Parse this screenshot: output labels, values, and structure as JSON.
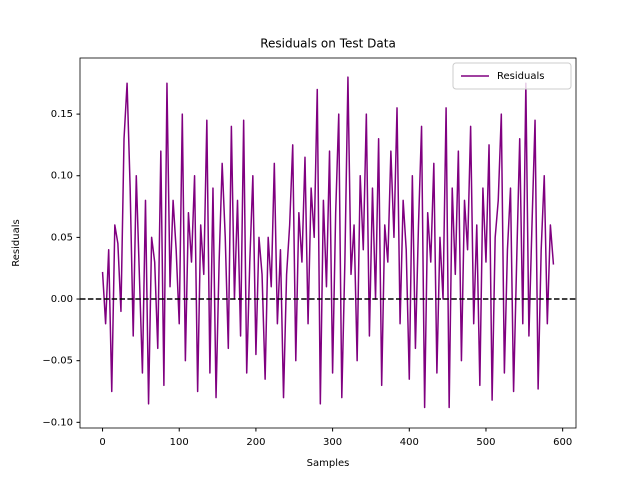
{
  "chart_data": {
    "type": "line",
    "title": "Residuals on Test Data",
    "x_label": "Samples",
    "y_label": "Residuals",
    "x": [
      0,
      4,
      8,
      12,
      16,
      20,
      24,
      28,
      32,
      36,
      40,
      44,
      48,
      52,
      56,
      60,
      64,
      68,
      72,
      76,
      80,
      84,
      88,
      92,
      96,
      100,
      104,
      108,
      112,
      116,
      120,
      124,
      128,
      132,
      136,
      140,
      144,
      148,
      152,
      156,
      160,
      164,
      168,
      172,
      176,
      180,
      184,
      188,
      192,
      196,
      200,
      204,
      208,
      212,
      216,
      220,
      224,
      228,
      232,
      236,
      240,
      244,
      248,
      252,
      256,
      260,
      264,
      268,
      272,
      276,
      280,
      284,
      288,
      292,
      296,
      300,
      304,
      308,
      312,
      316,
      320,
      324,
      328,
      332,
      336,
      340,
      344,
      348,
      352,
      356,
      360,
      364,
      368,
      372,
      376,
      380,
      384,
      388,
      392,
      396,
      400,
      404,
      408,
      412,
      416,
      420,
      424,
      428,
      432,
      436,
      440,
      444,
      448,
      452,
      456,
      460,
      464,
      468,
      472,
      476,
      480,
      484,
      488,
      492,
      496,
      500,
      504,
      508,
      512,
      516,
      520,
      524,
      528,
      532,
      536,
      540,
      544,
      548,
      552,
      556,
      560,
      564,
      568,
      572,
      576,
      580,
      584,
      588
    ],
    "series": [
      {
        "name": "Residuals",
        "color": "#800080",
        "values": [
          0.022,
          -0.02,
          0.04,
          -0.075,
          0.06,
          0.045,
          -0.01,
          0.13,
          0.175,
          0.09,
          -0.03,
          0.1,
          0.02,
          -0.06,
          0.08,
          -0.085,
          0.05,
          0.03,
          -0.04,
          0.12,
          -0.07,
          0.175,
          0.01,
          0.08,
          0.04,
          -0.02,
          0.15,
          -0.05,
          0.07,
          0.03,
          0.1,
          -0.075,
          0.06,
          0.02,
          0.145,
          -0.06,
          0.09,
          -0.08,
          0.03,
          0.11,
          0.05,
          -0.04,
          0.14,
          0.0,
          0.08,
          -0.03,
          0.145,
          -0.06,
          0.03,
          0.1,
          -0.045,
          0.05,
          0.02,
          -0.065,
          0.05,
          0.01,
          0.11,
          -0.02,
          0.04,
          -0.08,
          0.02,
          0.06,
          0.125,
          -0.05,
          0.07,
          0.03,
          0.115,
          -0.02,
          0.09,
          0.05,
          0.17,
          -0.085,
          0.08,
          0.01,
          0.12,
          -0.06,
          0.07,
          0.15,
          -0.08,
          0.03,
          0.18,
          0.02,
          0.06,
          -0.05,
          0.1,
          0.04,
          0.15,
          -0.03,
          0.09,
          0.0,
          0.13,
          -0.07,
          0.06,
          0.03,
          0.12,
          0.05,
          0.155,
          -0.02,
          0.08,
          0.04,
          -0.065,
          0.1,
          -0.04,
          0.06,
          0.14,
          -0.088,
          0.07,
          0.03,
          0.11,
          -0.06,
          0.05,
          0.0,
          0.155,
          -0.088,
          0.09,
          0.02,
          0.12,
          -0.05,
          0.08,
          0.04,
          0.14,
          -0.02,
          0.06,
          -0.07,
          0.09,
          0.03,
          0.125,
          -0.082,
          0.05,
          0.08,
          0.15,
          -0.06,
          0.04,
          0.09,
          -0.075,
          0.03,
          0.13,
          -0.02,
          0.175,
          -0.03,
          0.06,
          0.145,
          -0.073,
          0.04,
          0.1,
          -0.02,
          0.06,
          0.028
        ]
      }
    ],
    "reference_line": {
      "y": 0,
      "color": "#000000",
      "style": "dashed"
    },
    "xlim": [
      -29.4,
      617.4
    ],
    "xticks": [
      0,
      100,
      200,
      300,
      400,
      500,
      600
    ],
    "ylim": [
      -0.1046,
      0.1955
    ],
    "yticks": [
      {
        "value": -0.1,
        "label": "−0.10"
      },
      {
        "value": -0.05,
        "label": "−0.05"
      },
      {
        "value": 0,
        "label": "0.00"
      },
      {
        "value": 0.05,
        "label": "0.05"
      },
      {
        "value": 0.1,
        "label": "0.10"
      },
      {
        "value": 0.15,
        "label": "0.15"
      }
    ],
    "legend": "upper right",
    "grid": false
  }
}
